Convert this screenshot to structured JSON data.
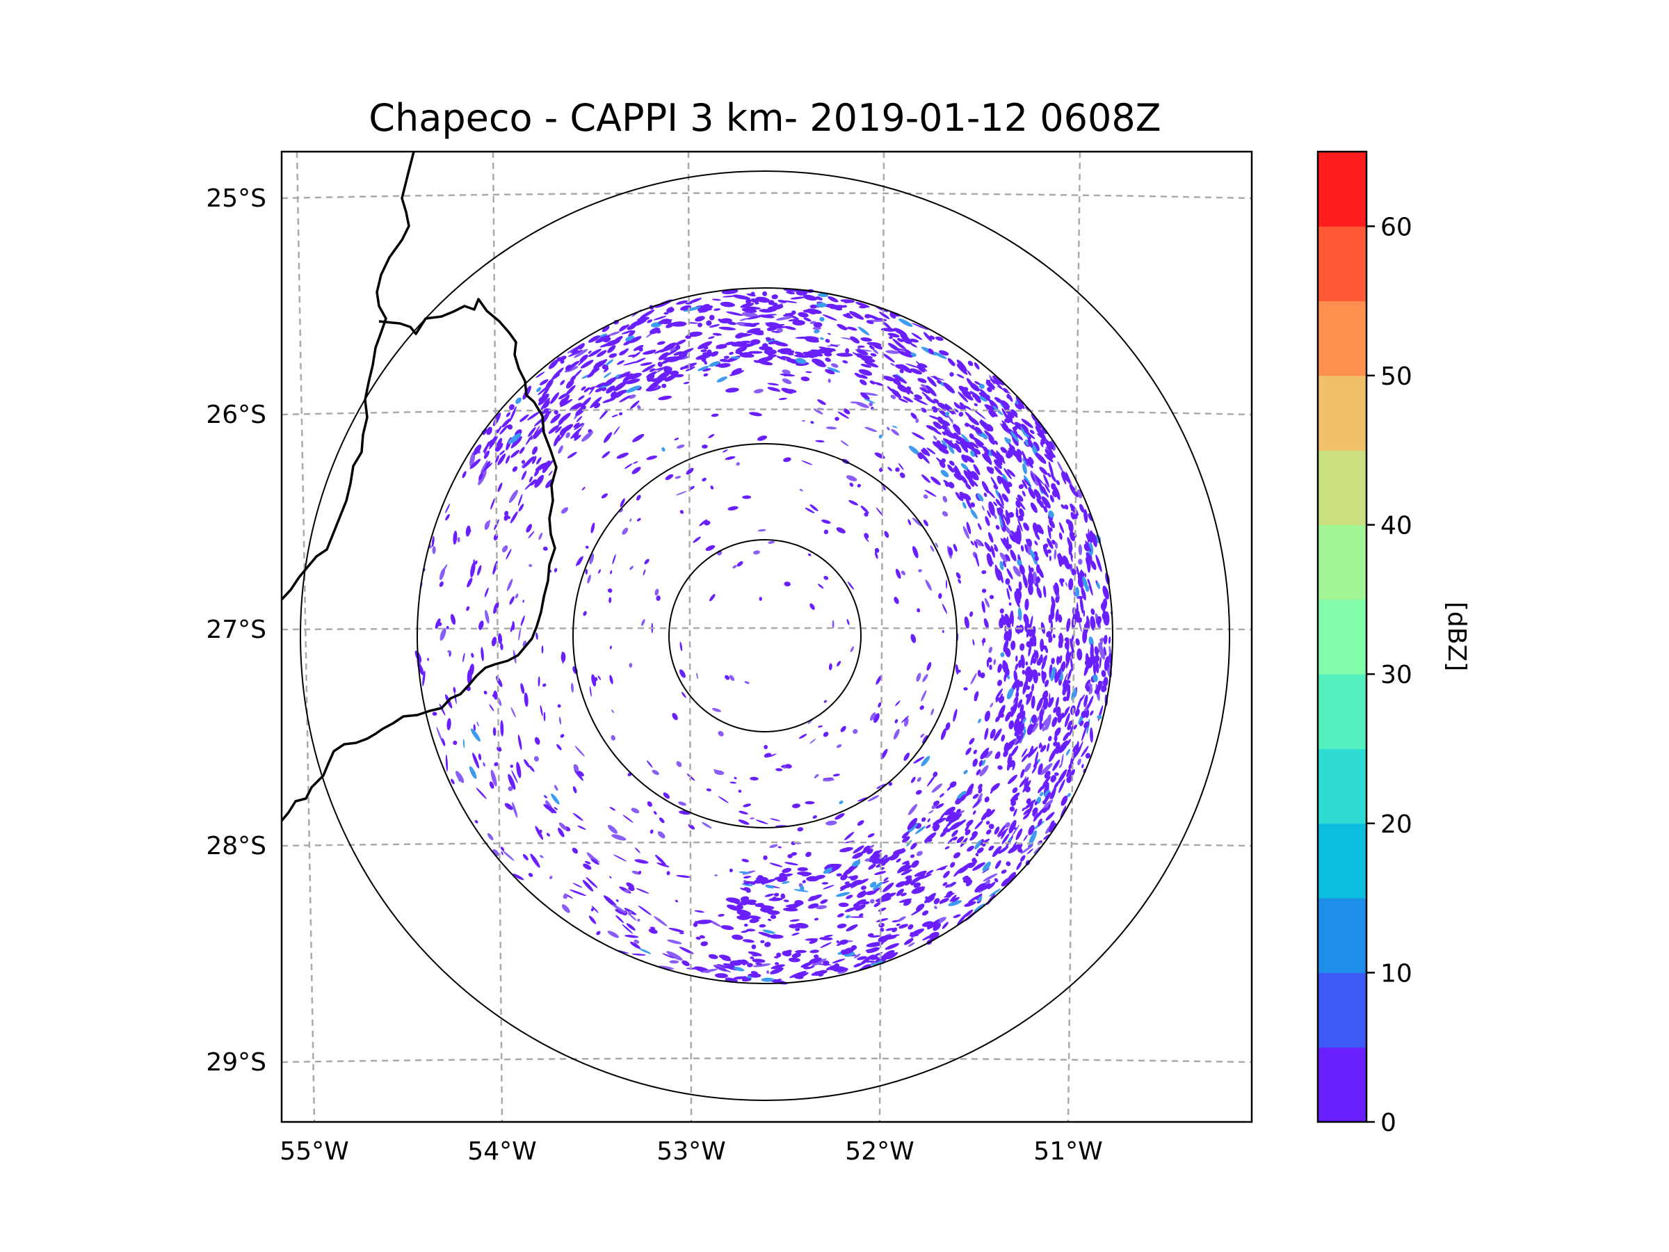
{
  "title": "Chapeco - CAPPI 3 km- 2019-01-12 0608Z",
  "map": {
    "lon_labels": [
      "55°W",
      "54°W",
      "53°W",
      "52°W",
      "51°W"
    ],
    "lat_labels": [
      "25°S",
      "26°S",
      "27°S",
      "28°S",
      "29°S"
    ],
    "radar_center": {
      "lon": -52.6,
      "lat": -27.03
    },
    "range_rings": 4
  },
  "colorbar": {
    "label": "[dBZ]",
    "tick_labels": [
      "0",
      "10",
      "20",
      "30",
      "40",
      "50",
      "60"
    ],
    "levels": [
      0,
      5,
      10,
      15,
      20,
      25,
      30,
      35,
      40,
      45,
      50,
      55,
      60,
      65
    ],
    "colors": [
      "#6a1fff",
      "#3d5cf5",
      "#1f8ee8",
      "#0dbde0",
      "#2fdcd3",
      "#55f0c0",
      "#80fcaa",
      "#a2f595",
      "#c9df80",
      "#f2c06a",
      "#ff9050",
      "#ff5a35",
      "#ff1d1d"
    ]
  },
  "colors": {
    "echo_main": "#6a1fff",
    "echo_light": "#8a5cf8",
    "echo_strong": "#3d9cf0",
    "grid": "#aaaaaa",
    "coast": "#000000"
  }
}
